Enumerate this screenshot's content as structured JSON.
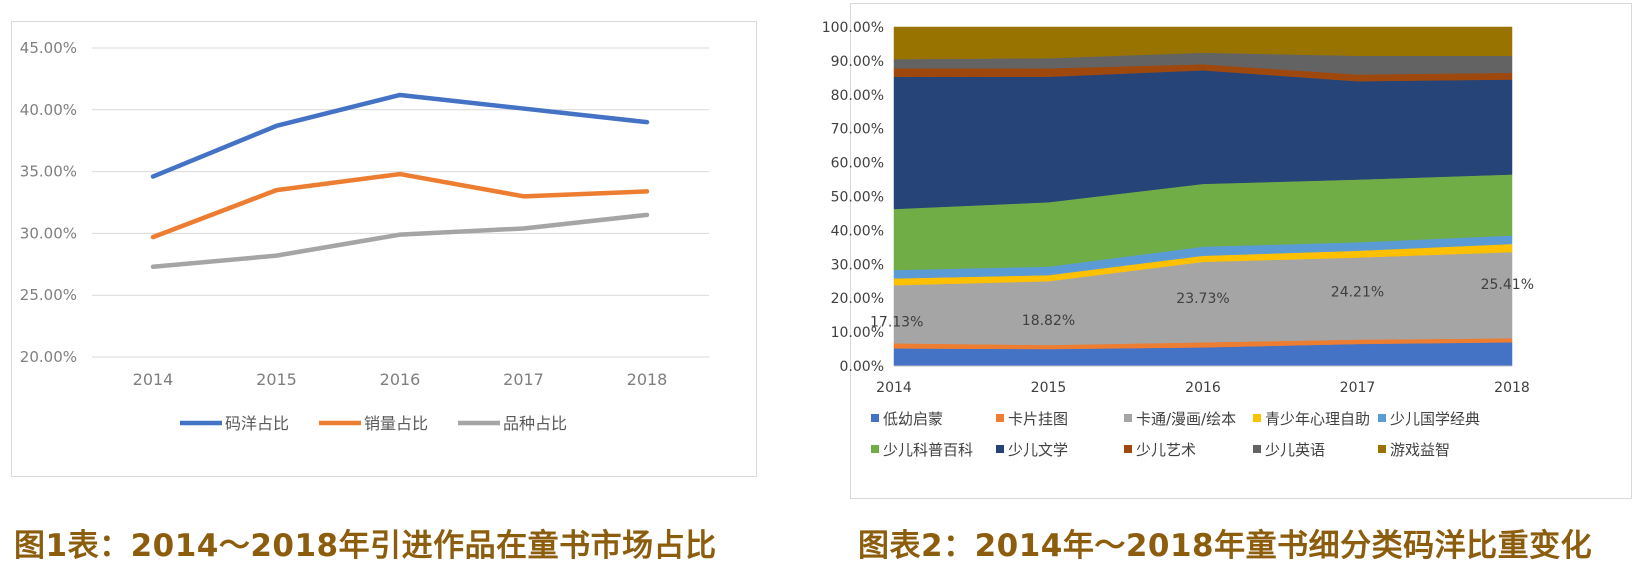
{
  "captions": {
    "chart1": "图1表：2014～2018年引进作品在童书市场占比",
    "chart2": "图表2：2014年～2018年童书细分类码洋比重变化"
  },
  "chart_data": [
    {
      "type": "line",
      "title": "",
      "xlabel": "",
      "ylabel": "",
      "categories": [
        "2014",
        "2015",
        "2016",
        "2017",
        "2018"
      ],
      "y_ticks": [
        "20.00%",
        "25.00%",
        "30.00%",
        "35.00%",
        "40.00%",
        "45.00%"
      ],
      "ylim": [
        20,
        45
      ],
      "grid": true,
      "legend_position": "bottom",
      "series": [
        {
          "name": "码洋占比",
          "color": "#4472c4",
          "values": [
            34.6,
            38.7,
            41.2,
            40.1,
            39.0
          ]
        },
        {
          "name": "销量占比",
          "color": "#ed7d31",
          "values": [
            29.7,
            33.5,
            34.8,
            33.0,
            33.4
          ]
        },
        {
          "name": "品种占比",
          "color": "#a5a5a5",
          "values": [
            27.3,
            28.2,
            29.9,
            30.4,
            31.5
          ]
        }
      ]
    },
    {
      "type": "area",
      "stacked": true,
      "title": "",
      "xlabel": "",
      "ylabel": "",
      "categories": [
        "2014",
        "2015",
        "2016",
        "2017",
        "2018"
      ],
      "y_ticks": [
        "0.00%",
        "10.00%",
        "20.00%",
        "30.00%",
        "40.00%",
        "50.00%",
        "60.00%",
        "70.00%",
        "80.00%",
        "90.00%",
        "100.00%"
      ],
      "ylim": [
        0,
        100
      ],
      "legend_position": "bottom",
      "data_labels": [
        "17.13%",
        "18.82%",
        "23.73%",
        "24.21%",
        "25.41%"
      ],
      "series": [
        {
          "name": "低幼启蒙",
          "color": "#4472c4",
          "values": [
            5.2,
            5.0,
            5.5,
            6.5,
            7.0
          ]
        },
        {
          "name": "卡片挂图",
          "color": "#ed7d31",
          "values": [
            1.5,
            1.2,
            1.5,
            1.3,
            1.2
          ]
        },
        {
          "name": "卡通/漫画/绘本",
          "color": "#a5a5a5",
          "values": [
            17.13,
            18.82,
            23.73,
            24.21,
            25.41
          ]
        },
        {
          "name": "青少年心理自助",
          "color": "#ffc000",
          "values": [
            2.0,
            1.8,
            1.8,
            2.0,
            2.4
          ]
        },
        {
          "name": "少儿国学经典",
          "color": "#5b9bd5",
          "values": [
            2.5,
            2.5,
            2.7,
            2.5,
            2.5
          ]
        },
        {
          "name": "少儿科普百科",
          "color": "#70ad47",
          "values": [
            18.0,
            19.0,
            18.5,
            18.5,
            18.0
          ]
        },
        {
          "name": "少儿文学",
          "color": "#264478",
          "values": [
            39.0,
            37.0,
            33.5,
            29.0,
            28.0
          ]
        },
        {
          "name": "少儿艺术",
          "color": "#9e480e",
          "values": [
            2.5,
            2.5,
            1.8,
            2.0,
            2.0
          ]
        },
        {
          "name": "少儿英语",
          "color": "#636363",
          "values": [
            2.7,
            3.0,
            3.4,
            5.5,
            5.0
          ]
        },
        {
          "name": "游戏益智",
          "color": "#997300",
          "values": [
            9.47,
            9.18,
            7.57,
            8.49,
            8.49
          ]
        }
      ]
    }
  ]
}
